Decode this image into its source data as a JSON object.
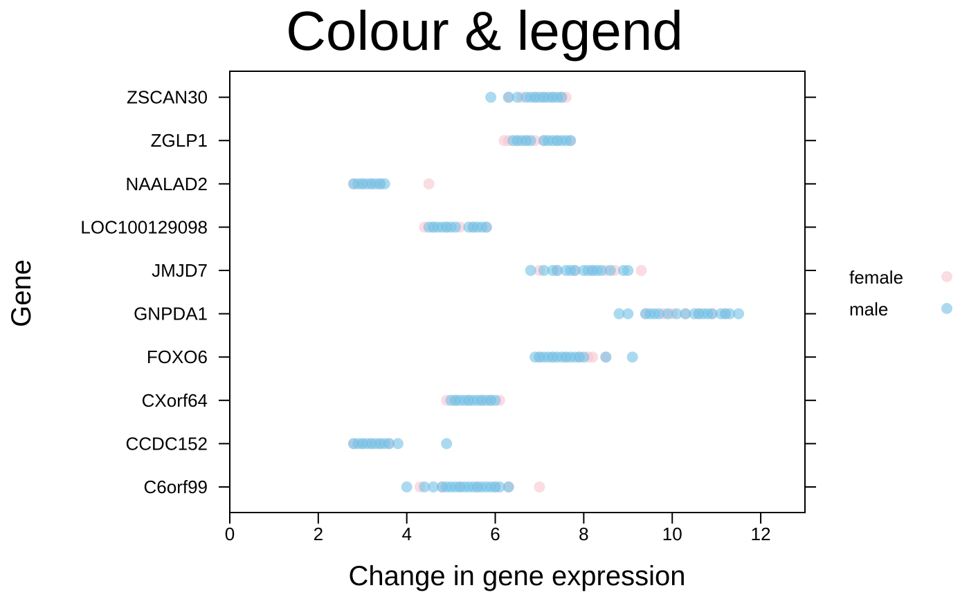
{
  "chart_data": {
    "type": "scatter",
    "title": "Colour & legend",
    "xlabel": "Change in gene expression",
    "ylabel": "Gene",
    "xlim": [
      0,
      13
    ],
    "x_ticks": [
      0,
      2,
      4,
      6,
      8,
      10,
      12
    ],
    "categories": [
      "C6orf99",
      "CCDC152",
      "CXorf64",
      "FOXO6",
      "GNPDA1",
      "JMJD7",
      "LOC100129098",
      "NAALAD2",
      "ZGLP1",
      "ZSCAN30"
    ],
    "grid": false,
    "legend_position": "right",
    "series": [
      {
        "name": "female",
        "color": "#f9c5d0",
        "points": [
          {
            "gene": "ZSCAN30",
            "x": [
              6.3,
              6.6,
              6.9,
              7.1,
              7.3,
              7.5,
              7.6
            ]
          },
          {
            "gene": "ZGLP1",
            "x": [
              6.2,
              6.3,
              6.5,
              6.7,
              6.9,
              7.1,
              7.4,
              7.7
            ]
          },
          {
            "gene": "NAALAD2",
            "x": [
              2.8,
              3.0,
              3.2,
              3.4,
              4.5
            ]
          },
          {
            "gene": "LOC100129098",
            "x": [
              4.4,
              4.6,
              4.9,
              5.2,
              5.5,
              5.8
            ]
          },
          {
            "gene": "JMJD7",
            "x": [
              7.0,
              7.4,
              7.8,
              8.2,
              8.5,
              8.7,
              9.3
            ]
          },
          {
            "gene": "GNPDA1",
            "x": [
              9.4,
              9.8,
              10.0,
              10.3,
              10.6,
              10.9,
              11.2
            ]
          },
          {
            "gene": "FOXO6",
            "x": [
              7.0,
              7.3,
              7.6,
              7.9,
              8.1,
              8.2,
              8.5
            ]
          },
          {
            "gene": "CXorf64",
            "x": [
              4.9,
              5.1,
              5.4,
              5.7,
              5.9,
              6.1
            ]
          },
          {
            "gene": "CCDC152",
            "x": [
              2.8,
              3.0,
              3.2,
              3.4,
              3.6
            ]
          },
          {
            "gene": "C6orf99",
            "x": [
              4.3,
              4.8,
              5.2,
              5.6,
              6.0,
              6.3,
              7.0
            ]
          }
        ]
      },
      {
        "name": "male",
        "color": "#73c2e6",
        "points": [
          {
            "gene": "ZSCAN30",
            "x": [
              5.9,
              6.3,
              6.5,
              6.7,
              6.8,
              6.9,
              7.0,
              7.1,
              7.2,
              7.3,
              7.4,
              7.5
            ]
          },
          {
            "gene": "ZGLP1",
            "x": [
              6.4,
              6.5,
              6.6,
              6.7,
              6.8,
              7.1,
              7.2,
              7.3,
              7.4,
              7.5,
              7.6,
              7.7
            ]
          },
          {
            "gene": "NAALAD2",
            "x": [
              2.8,
              2.9,
              3.0,
              3.1,
              3.2,
              3.3,
              3.4,
              3.5
            ]
          },
          {
            "gene": "LOC100129098",
            "x": [
              4.5,
              4.6,
              4.7,
              4.8,
              4.9,
              5.0,
              5.1,
              5.4,
              5.5,
              5.6,
              5.7,
              5.8
            ]
          },
          {
            "gene": "JMJD7",
            "x": [
              6.8,
              7.1,
              7.3,
              7.4,
              7.6,
              7.7,
              7.8,
              8.0,
              8.1,
              8.2,
              8.3,
              8.4,
              8.6,
              8.9,
              9.0
            ]
          },
          {
            "gene": "GNPDA1",
            "x": [
              8.8,
              9.0,
              9.4,
              9.5,
              9.6,
              9.7,
              9.9,
              10.1,
              10.3,
              10.5,
              10.6,
              10.7,
              10.8,
              10.9,
              11.1,
              11.2,
              11.3,
              11.5
            ]
          },
          {
            "gene": "FOXO6",
            "x": [
              6.9,
              7.0,
              7.1,
              7.2,
              7.3,
              7.4,
              7.5,
              7.6,
              7.7,
              7.8,
              7.9,
              8.0,
              8.5,
              9.1
            ]
          },
          {
            "gene": "CXorf64",
            "x": [
              5.0,
              5.1,
              5.2,
              5.3,
              5.4,
              5.5,
              5.6,
              5.7,
              5.8,
              5.9,
              6.0
            ]
          },
          {
            "gene": "CCDC152",
            "x": [
              2.8,
              2.9,
              3.0,
              3.1,
              3.2,
              3.3,
              3.4,
              3.5,
              3.6,
              3.8,
              4.9
            ]
          },
          {
            "gene": "C6orf99",
            "x": [
              4.0,
              4.4,
              4.6,
              4.8,
              4.9,
              5.0,
              5.1,
              5.2,
              5.3,
              5.4,
              5.5,
              5.6,
              5.7,
              5.8,
              5.9,
              6.0,
              6.1,
              6.3
            ]
          }
        ]
      }
    ]
  }
}
